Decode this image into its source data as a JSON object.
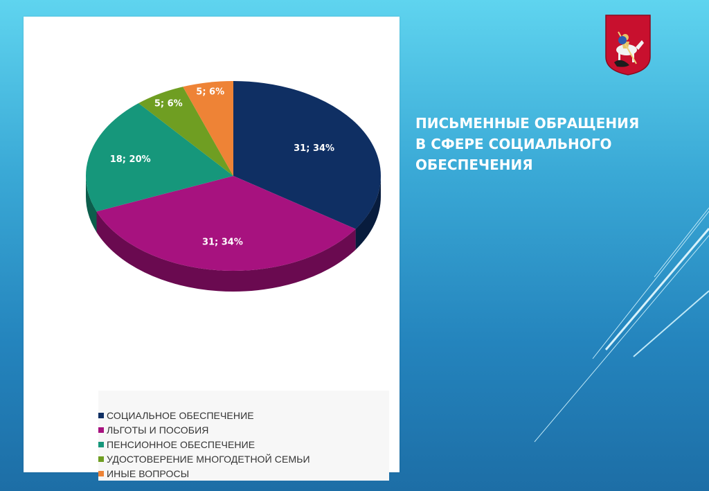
{
  "slide": {
    "title_lines": [
      "ПИСЬМЕННЫЕ ОБРАЩЕНИЯ",
      "В СФЕРЕ СОЦИАЛЬНОГО",
      "ОБЕСПЕЧЕНИЯ"
    ],
    "emblem_icon": "moscow-coat-of-arms-icon"
  },
  "chart_data": {
    "type": "pie",
    "title": "",
    "legend_position": "bottom",
    "slices": [
      {
        "label": "СОЦИАЛЬНОЕ ОБЕСПЕЧЕНИЕ",
        "value": 31,
        "percent": 34,
        "data_label": "31; 34%",
        "color": "#0f2f63",
        "side_color": "#081c3d",
        "label_color": "#ffffff"
      },
      {
        "label": "ЛЬГОТЫ И ПОСОБИЯ",
        "value": 31,
        "percent": 34,
        "data_label": "31; 34%",
        "color": "#a7127f",
        "side_color": "#6a0a50",
        "label_color": "#ffffff"
      },
      {
        "label": "ПЕНСИОННОЕ ОБЕСПЕЧЕНИЕ",
        "value": 18,
        "percent": 20,
        "data_label": "18; 20%",
        "color": "#16977b",
        "side_color": "#0c5e4c",
        "label_color": "#ffffff"
      },
      {
        "label": "УДОСТОВЕРЕНИЕ МНОГОДЕТНОЙ СЕМЬИ",
        "value": 5,
        "percent": 6,
        "data_label": "5; 6%",
        "color": "#6f9e22",
        "side_color": "#456414",
        "label_color": "#ffffff"
      },
      {
        "label": "ИНЫЕ ВОПРОСЫ",
        "value": 5,
        "percent": 6,
        "data_label": "5; 6%",
        "color": "#ee8336",
        "side_color": "#a85820",
        "label_color": "#ffffff"
      }
    ]
  }
}
